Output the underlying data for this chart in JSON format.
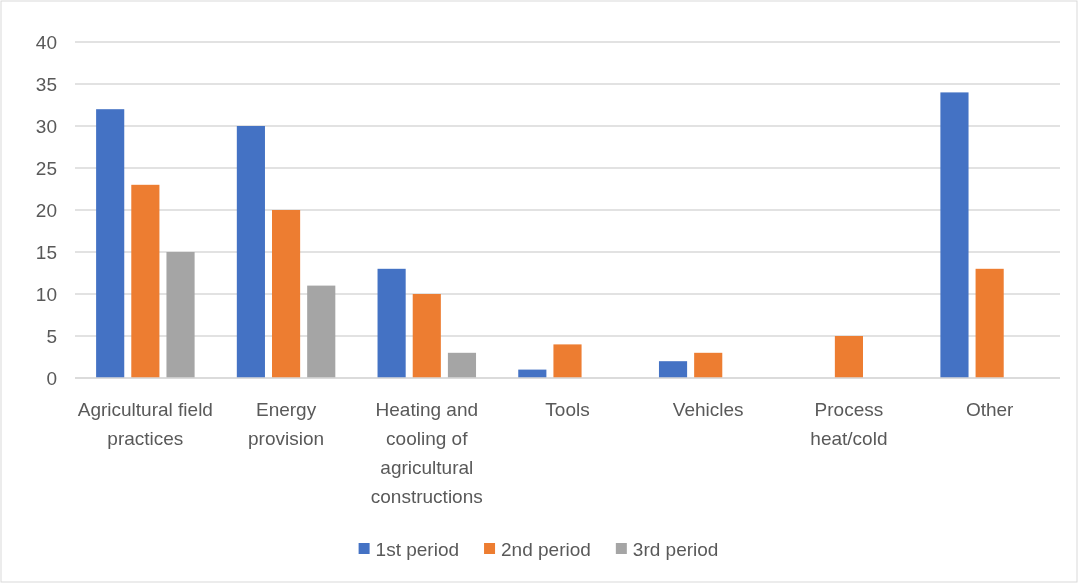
{
  "chart_data": {
    "type": "bar",
    "categories": [
      "Agricultural field practices",
      "Energy provision",
      "Heating and cooling of agricultural constructions",
      "Tools",
      "Vehicles",
      "Process heat/cold",
      "Other"
    ],
    "series": [
      {
        "name": "1st period",
        "color": "#4472c4",
        "values": [
          32,
          30,
          13,
          1,
          2,
          0,
          34
        ]
      },
      {
        "name": "2nd period",
        "color": "#ed7d31",
        "values": [
          23,
          20,
          10,
          4,
          3,
          5,
          13
        ]
      },
      {
        "name": "3rd period",
        "color": "#a5a5a5",
        "values": [
          15,
          11,
          3,
          0,
          0,
          0,
          0
        ]
      }
    ],
    "ylim": [
      0,
      40
    ],
    "yticks": [
      0,
      5,
      10,
      15,
      20,
      25,
      30,
      35,
      40
    ],
    "grid": "y",
    "legend": "bottom"
  }
}
